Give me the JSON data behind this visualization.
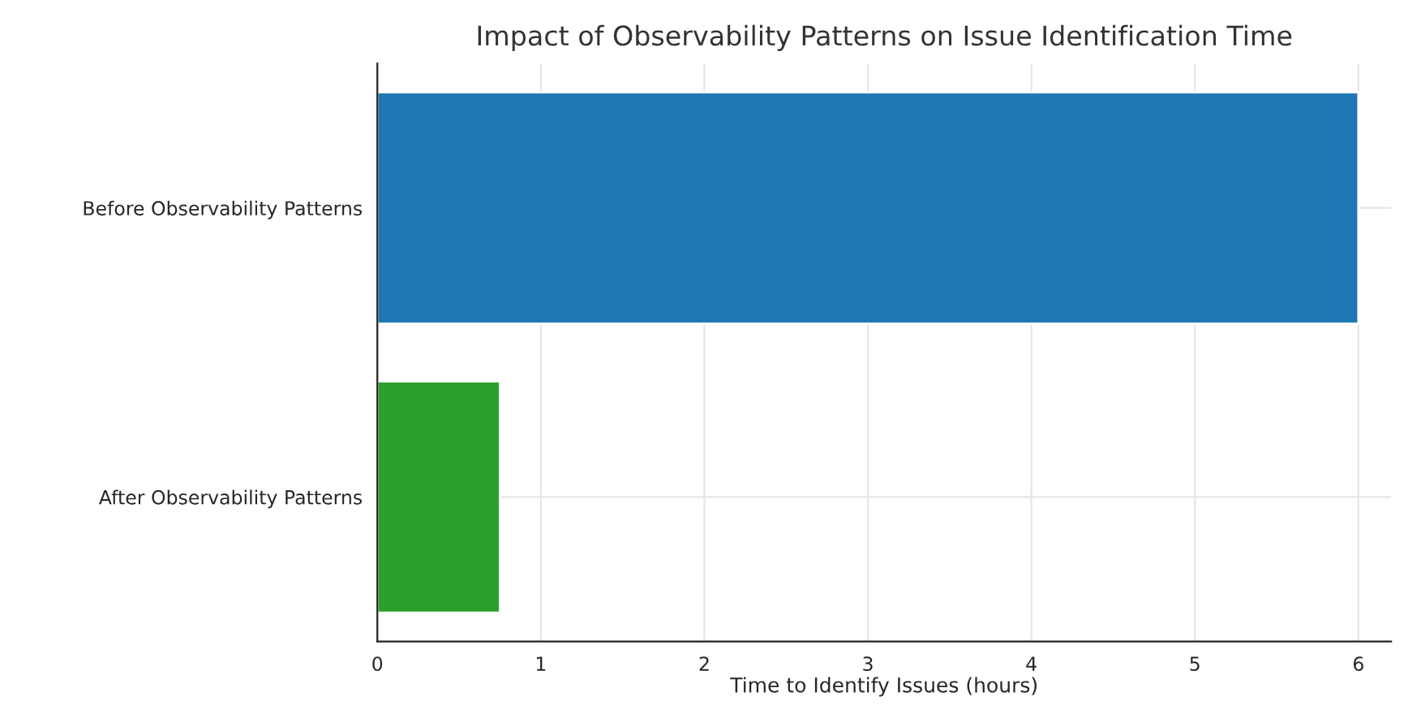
{
  "chart_data": {
    "type": "bar",
    "orientation": "horizontal",
    "title": "Impact of Observability Patterns on Issue Identification Time",
    "xlabel": "Time to Identify Issues (hours)",
    "categories": [
      "Before Observability Patterns",
      "After Observability Patterns"
    ],
    "values": [
      6,
      0.75
    ],
    "colors": [
      "#1f77b4",
      "#2ca02c"
    ],
    "xlim": [
      0,
      6.2
    ],
    "xticks": [
      0,
      1,
      2,
      3,
      4,
      5,
      6
    ],
    "grid": true
  }
}
